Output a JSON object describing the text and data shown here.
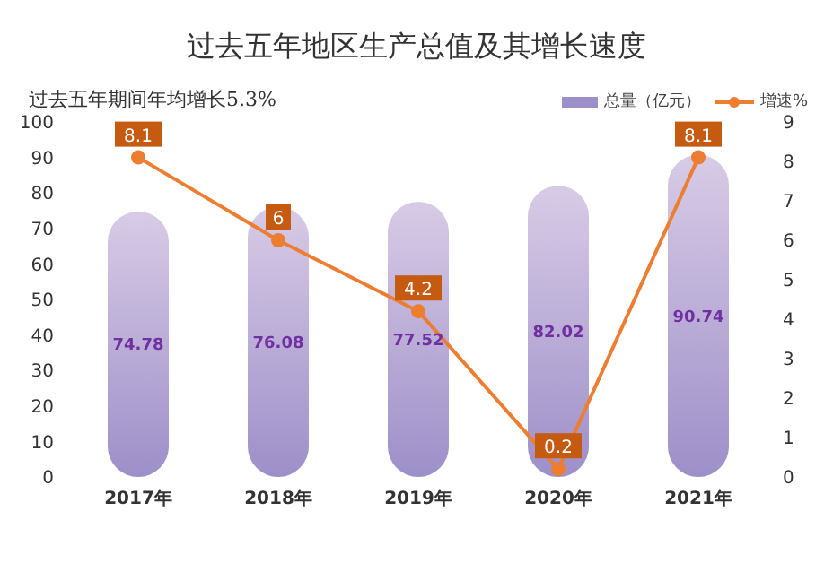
{
  "chart_data": {
    "type": "bar",
    "title": "过去五年地区生产总值及其增长速度",
    "subtitle": "过去五年期间年均增长5.3%",
    "categories": [
      "2017年",
      "2018年",
      "2019年",
      "2020年",
      "2021年"
    ],
    "series": [
      {
        "name": "总量（亿元）",
        "color": "#9d8fc8",
        "values": [
          74.78,
          76.08,
          77.52,
          82.02,
          90.74
        ]
      },
      {
        "name": "增速%",
        "type": "line",
        "axis": "y2",
        "color": "#ed7d31",
        "values": [
          8.1,
          6,
          4.2,
          0.2,
          8.1
        ]
      }
    ],
    "ylim": [
      0,
      100
    ],
    "yticks": [
      0,
      10,
      20,
      30,
      40,
      50,
      60,
      70,
      80,
      90,
      100
    ],
    "y2lim": [
      0,
      9
    ],
    "y2ticks": [
      0,
      1,
      2,
      3,
      4,
      5,
      6,
      7,
      8,
      9
    ],
    "data_labels": true,
    "legend": "top right",
    "marker": "circle"
  }
}
